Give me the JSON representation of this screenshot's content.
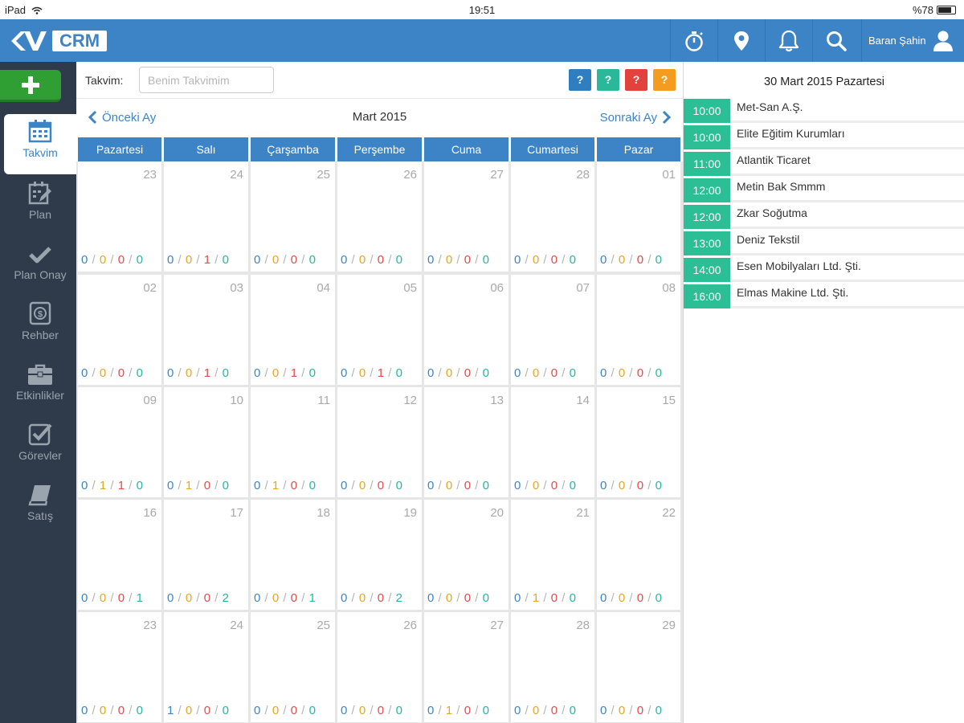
{
  "status": {
    "device": "iPad",
    "time": "19:51",
    "battery": "%78"
  },
  "header": {
    "logo_text": "CRM",
    "user_name": "Baran Şahin"
  },
  "sidebar": {
    "items": [
      {
        "label": "Takvim",
        "icon": "calendar-icon",
        "active": true
      },
      {
        "label": "Plan",
        "icon": "plan-icon"
      },
      {
        "label": "Plan Onay",
        "icon": "check-icon"
      },
      {
        "label": "Rehber",
        "icon": "contacts-icon"
      },
      {
        "label": "Etkinlikler",
        "icon": "briefcase-icon"
      },
      {
        "label": "Görevler",
        "icon": "task-icon"
      },
      {
        "label": "Satış",
        "icon": "book-icon"
      }
    ]
  },
  "toolbar": {
    "calendar_label": "Takvim:",
    "calendar_placeholder": "Benim Takvimim",
    "help_buttons": [
      {
        "label": "?",
        "color": "#2f7fc0"
      },
      {
        "label": "?",
        "color": "#2bb79a"
      },
      {
        "label": "?",
        "color": "#e2423b"
      },
      {
        "label": "?",
        "color": "#f39c1f"
      }
    ]
  },
  "month_nav": {
    "prev_label": "Önceki Ay",
    "title": "Mart 2015",
    "next_label": "Sonraki Ay"
  },
  "calendar": {
    "weekdays": [
      "Pazartesi",
      "Salı",
      "Çarşamba",
      "Perşembe",
      "Cuma",
      "Cumartesi",
      "Pazar"
    ],
    "weeks": [
      [
        {
          "day": "23",
          "counts": [
            "0",
            "0",
            "0",
            "0"
          ]
        },
        {
          "day": "24",
          "counts": [
            "0",
            "0",
            "1",
            "0"
          ]
        },
        {
          "day": "25",
          "counts": [
            "0",
            "0",
            "0",
            "0"
          ]
        },
        {
          "day": "26",
          "counts": [
            "0",
            "0",
            "0",
            "0"
          ]
        },
        {
          "day": "27",
          "counts": [
            "0",
            "0",
            "0",
            "0"
          ]
        },
        {
          "day": "28",
          "counts": [
            "0",
            "0",
            "0",
            "0"
          ]
        },
        {
          "day": "01",
          "counts": [
            "0",
            "0",
            "0",
            "0"
          ]
        }
      ],
      [
        {
          "day": "02",
          "counts": [
            "0",
            "0",
            "0",
            "0"
          ]
        },
        {
          "day": "03",
          "counts": [
            "0",
            "0",
            "1",
            "0"
          ]
        },
        {
          "day": "04",
          "counts": [
            "0",
            "0",
            "1",
            "0"
          ]
        },
        {
          "day": "05",
          "counts": [
            "0",
            "0",
            "1",
            "0"
          ]
        },
        {
          "day": "06",
          "counts": [
            "0",
            "0",
            "0",
            "0"
          ]
        },
        {
          "day": "07",
          "counts": [
            "0",
            "0",
            "0",
            "0"
          ]
        },
        {
          "day": "08",
          "counts": [
            "0",
            "0",
            "0",
            "0"
          ]
        }
      ],
      [
        {
          "day": "09",
          "counts": [
            "0",
            "1",
            "1",
            "0"
          ]
        },
        {
          "day": "10",
          "counts": [
            "0",
            "1",
            "0",
            "0"
          ]
        },
        {
          "day": "11",
          "counts": [
            "0",
            "1",
            "0",
            "0"
          ]
        },
        {
          "day": "12",
          "counts": [
            "0",
            "0",
            "0",
            "0"
          ]
        },
        {
          "day": "13",
          "counts": [
            "0",
            "0",
            "0",
            "0"
          ]
        },
        {
          "day": "14",
          "counts": [
            "0",
            "0",
            "0",
            "0"
          ]
        },
        {
          "day": "15",
          "counts": [
            "0",
            "0",
            "0",
            "0"
          ]
        }
      ],
      [
        {
          "day": "16",
          "counts": [
            "0",
            "0",
            "0",
            "1"
          ]
        },
        {
          "day": "17",
          "counts": [
            "0",
            "0",
            "0",
            "2"
          ]
        },
        {
          "day": "18",
          "counts": [
            "0",
            "0",
            "0",
            "1"
          ]
        },
        {
          "day": "19",
          "counts": [
            "0",
            "0",
            "0",
            "2"
          ]
        },
        {
          "day": "20",
          "counts": [
            "0",
            "0",
            "0",
            "0"
          ]
        },
        {
          "day": "21",
          "counts": [
            "0",
            "1",
            "0",
            "0"
          ]
        },
        {
          "day": "22",
          "counts": [
            "0",
            "0",
            "0",
            "0"
          ]
        }
      ],
      [
        {
          "day": "23",
          "counts": [
            "0",
            "0",
            "0",
            "0"
          ]
        },
        {
          "day": "24",
          "counts": [
            "1",
            "0",
            "0",
            "0"
          ]
        },
        {
          "day": "25",
          "counts": [
            "0",
            "0",
            "0",
            "0"
          ]
        },
        {
          "day": "26",
          "counts": [
            "0",
            "0",
            "0",
            "0"
          ]
        },
        {
          "day": "27",
          "counts": [
            "0",
            "1",
            "0",
            "0"
          ]
        },
        {
          "day": "28",
          "counts": [
            "0",
            "0",
            "0",
            "0"
          ]
        },
        {
          "day": "29",
          "counts": [
            "0",
            "0",
            "0",
            "0"
          ]
        }
      ]
    ],
    "count_colors": [
      "#3d84c6",
      "#e6a623",
      "#e54b4b",
      "#26b7a1"
    ]
  },
  "day_panel": {
    "date_title": "30 Mart 2015 Pazartesi",
    "events": [
      {
        "time": "10:00",
        "name": "Met-San A.Ş."
      },
      {
        "time": "10:00",
        "name": "Elite Eğitim Kurumları"
      },
      {
        "time": "11:00",
        "name": "Atlantik Ticaret"
      },
      {
        "time": "12:00",
        "name": "Metin Bak Smmm"
      },
      {
        "time": "12:00",
        "name": "Zkar Soğutma"
      },
      {
        "time": "13:00",
        "name": "Deniz Tekstil"
      },
      {
        "time": "14:00",
        "name": "Esen Mobilyaları Ltd. Şti."
      },
      {
        "time": "16:00",
        "name": "Elmas Makine Ltd. Şti."
      }
    ]
  }
}
